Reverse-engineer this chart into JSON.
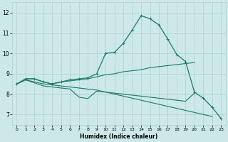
{
  "xlabel": "Humidex (Indice chaleur)",
  "xlim": [
    -0.5,
    23.5
  ],
  "ylim": [
    6.5,
    12.5
  ],
  "yticks": [
    7,
    8,
    9,
    10,
    11,
    12
  ],
  "xticks": [
    0,
    1,
    2,
    3,
    4,
    5,
    6,
    7,
    8,
    9,
    10,
    11,
    12,
    13,
    14,
    15,
    16,
    17,
    18,
    19,
    20,
    21,
    22,
    23
  ],
  "bg_color": "#cce8e8",
  "grid_color": "#b0d0d0",
  "line_color": "#1a7a6a",
  "line1_x": [
    0,
    1,
    2,
    3,
    4,
    5,
    6,
    7,
    8,
    9,
    10,
    11,
    12,
    13,
    14,
    15,
    16,
    17,
    18,
    19,
    20,
    21,
    22,
    23
  ],
  "line1_y": [
    8.5,
    8.75,
    8.75,
    8.6,
    8.5,
    8.6,
    8.7,
    8.75,
    8.8,
    9.0,
    10.0,
    10.05,
    10.5,
    11.15,
    11.85,
    11.7,
    11.4,
    10.7,
    9.95,
    9.6,
    8.1,
    7.8,
    7.35,
    6.8
  ],
  "line2_x": [
    0,
    1,
    2,
    3,
    4,
    5,
    6,
    7,
    8,
    9,
    10,
    11,
    12,
    13,
    14,
    15,
    16,
    17,
    18,
    19,
    20,
    21,
    22,
    23
  ],
  "line2_y": [
    8.5,
    8.75,
    8.75,
    8.6,
    8.5,
    8.6,
    8.65,
    8.7,
    8.75,
    8.85,
    8.95,
    9.0,
    9.1,
    9.15,
    9.2,
    9.3,
    9.35,
    9.4,
    9.45,
    9.5,
    9.55,
    null,
    null,
    null
  ],
  "line3_x": [
    0,
    1,
    2,
    3,
    4,
    5,
    6,
    7,
    8,
    9,
    10,
    11,
    12,
    13,
    14,
    15,
    16,
    17,
    18,
    19,
    20,
    21,
    22,
    23
  ],
  "line3_y": [
    8.5,
    8.7,
    8.55,
    8.4,
    8.35,
    8.3,
    8.25,
    7.85,
    7.78,
    8.15,
    8.1,
    8.05,
    8.0,
    7.95,
    7.9,
    7.85,
    7.8,
    7.75,
    7.7,
    7.65,
    8.05,
    null,
    null,
    null
  ],
  "line4_x": [
    0,
    1,
    2,
    3,
    4,
    5,
    6,
    7,
    8,
    9,
    10,
    11,
    12,
    13,
    14,
    15,
    16,
    17,
    18,
    19,
    20,
    21,
    22,
    23
  ],
  "line4_y": [
    8.5,
    8.7,
    8.6,
    8.5,
    8.45,
    8.4,
    8.35,
    8.3,
    8.25,
    8.2,
    8.1,
    8.0,
    7.9,
    7.8,
    7.7,
    7.6,
    7.5,
    7.4,
    7.3,
    7.2,
    7.1,
    7.0,
    6.9,
    null
  ]
}
